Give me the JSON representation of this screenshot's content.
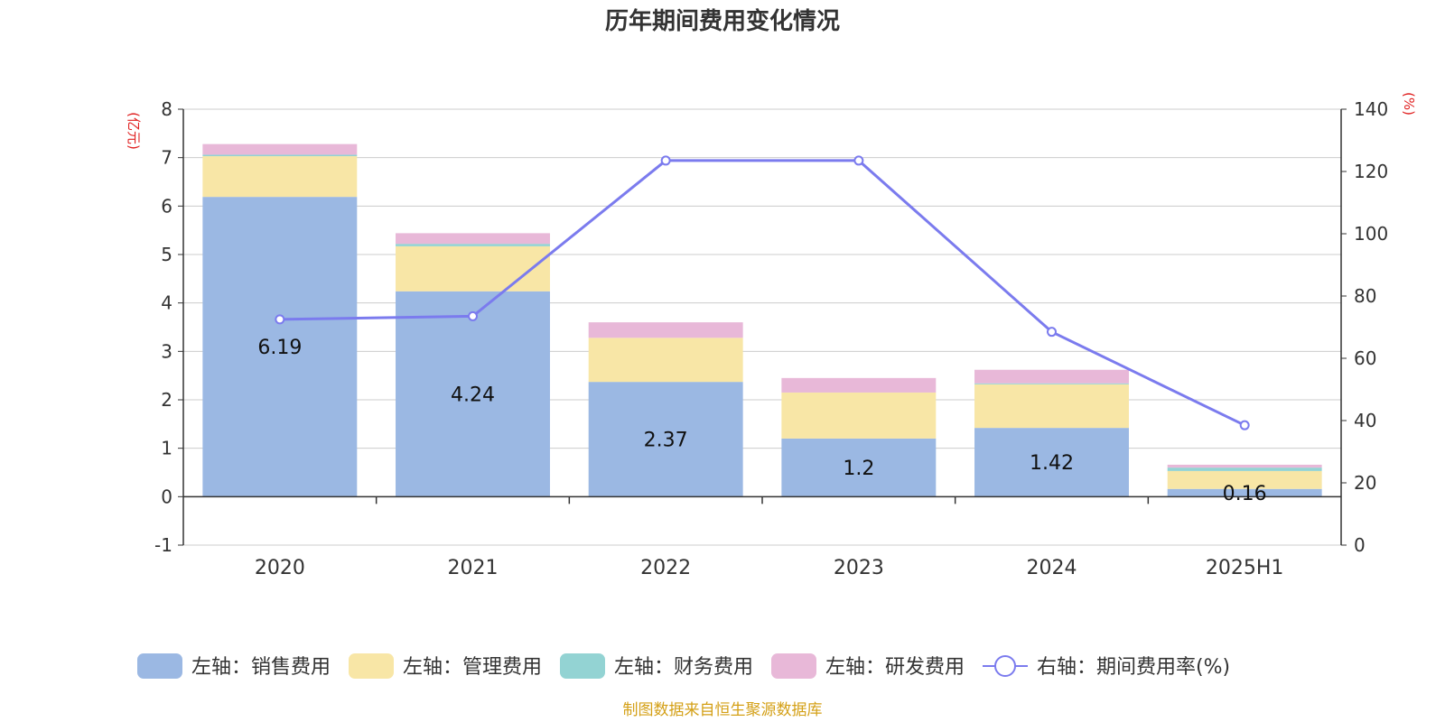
{
  "chart_data": {
    "type": "bar",
    "title": "历年期间费用变化情况",
    "left_axis_unit": "(亿元)",
    "right_axis_unit": "(%)",
    "categories": [
      "2020",
      "2021",
      "2022",
      "2023",
      "2024",
      "2025H1"
    ],
    "left_ylim": [
      -1,
      8
    ],
    "left_yticks": [
      "8",
      "7",
      "6",
      "5",
      "4",
      "3",
      "2",
      "1",
      "0",
      "-1"
    ],
    "right_ylim": [
      0,
      140
    ],
    "right_yticks": [
      "140",
      "120",
      "100",
      "80",
      "60",
      "40",
      "20",
      "0"
    ],
    "series": [
      {
        "name": "左轴：销售费用",
        "axis": "left",
        "kind": "bar",
        "color": "#9bb8e3",
        "values": [
          6.19,
          4.24,
          2.37,
          1.2,
          1.42,
          0.16
        ],
        "labels": [
          "6.19",
          "4.24",
          "2.37",
          "1.2",
          "1.42",
          "0.16"
        ]
      },
      {
        "name": "左轴：管理费用",
        "axis": "left",
        "kind": "bar",
        "color": "#f8e6a6",
        "values": [
          0.84,
          0.93,
          0.91,
          0.95,
          0.9,
          0.37
        ]
      },
      {
        "name": "左轴：财务费用",
        "axis": "left",
        "kind": "bar",
        "color": "#93d3d3",
        "values": [
          0.03,
          0.05,
          0.0,
          0.0,
          0.02,
          0.07
        ]
      },
      {
        "name": "左轴：研发费用",
        "axis": "left",
        "kind": "bar",
        "color": "#e8b8d8",
        "values": [
          0.22,
          0.22,
          0.32,
          0.3,
          0.28,
          0.06
        ]
      },
      {
        "name": "右轴：期间费用率(%)",
        "axis": "right",
        "kind": "line",
        "color": "#7b7bee",
        "values": [
          72.5,
          73.5,
          123.5,
          123.5,
          68.5,
          38.5
        ]
      }
    ],
    "grid": true,
    "legend_position": "bottom"
  },
  "source_note": "制图数据来自恒生聚源数据库"
}
